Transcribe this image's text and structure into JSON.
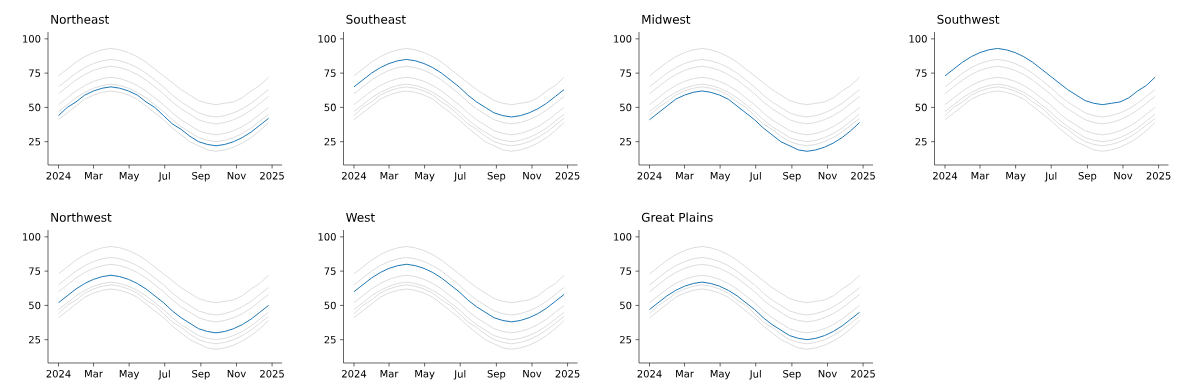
{
  "chart_data": [
    {
      "type": "line",
      "title": "Northeast",
      "x": [
        "2024-01-01",
        "2024-01-16",
        "2024-01-31",
        "2024-02-15",
        "2024-03-01",
        "2024-03-16",
        "2024-03-31",
        "2024-04-15",
        "2024-04-30",
        "2024-05-15",
        "2024-05-30",
        "2024-06-14",
        "2024-06-29",
        "2024-07-14",
        "2024-07-29",
        "2024-08-13",
        "2024-08-28",
        "2024-09-12",
        "2024-09-27",
        "2024-10-12",
        "2024-10-27",
        "2024-11-11",
        "2024-11-26",
        "2024-12-11",
        "2024-12-26"
      ],
      "xlim": [
        "2023-12-14",
        "2025-01-18"
      ],
      "ylim": [
        8,
        105
      ],
      "xticks": [
        {
          "value": "2024-01-01",
          "label": "2024"
        },
        {
          "value": "2024-03-01",
          "label": "Mar"
        },
        {
          "value": "2024-05-01",
          "label": "May"
        },
        {
          "value": "2024-07-01",
          "label": "Jul"
        },
        {
          "value": "2024-09-01",
          "label": "Sep"
        },
        {
          "value": "2024-11-01",
          "label": "Nov"
        },
        {
          "value": "2025-01-01",
          "label": "2025"
        }
      ],
      "yticks": [
        25,
        50,
        75,
        100
      ],
      "series": [
        {
          "color": "#dddddd",
          "values": [
            65,
            70,
            75,
            79,
            82,
            84,
            85,
            84,
            82,
            79,
            75,
            70,
            65,
            59,
            54,
            50,
            46,
            44,
            43,
            44,
            46,
            49,
            53,
            58,
            63
          ]
        },
        {
          "color": "#dddddd",
          "values": [
            41,
            46,
            51,
            56,
            59,
            61,
            62,
            61,
            59,
            56,
            51,
            46,
            41,
            35,
            30,
            25,
            22,
            19,
            18,
            19,
            21,
            24,
            28,
            33,
            39
          ]
        },
        {
          "color": "#dddddd",
          "values": [
            73,
            78,
            83,
            87,
            90,
            92,
            93,
            92,
            90,
            87,
            83,
            78,
            73,
            68,
            63,
            59,
            55,
            53,
            52,
            53,
            54,
            57,
            62,
            66,
            72
          ]
        },
        {
          "color": "#dddddd",
          "values": [
            52,
            57,
            62,
            66,
            69,
            71,
            72,
            71,
            69,
            66,
            62,
            57,
            52,
            46,
            41,
            37,
            33,
            31,
            30,
            31,
            33,
            36,
            40,
            45,
            50
          ]
        },
        {
          "color": "#dddddd",
          "values": [
            60,
            65,
            70,
            74,
            77,
            79,
            80,
            79,
            77,
            74,
            70,
            65,
            60,
            54,
            49,
            45,
            41,
            39,
            38,
            39,
            41,
            44,
            48,
            53,
            58
          ]
        },
        {
          "color": "#dddddd",
          "values": [
            47,
            52,
            57,
            61,
            64,
            66,
            67,
            66,
            64,
            61,
            57,
            52,
            47,
            41,
            36,
            32,
            28,
            26,
            25,
            26,
            28,
            31,
            35,
            40,
            45
          ]
        },
        {
          "color": "#1f77b4",
          "values": [
            44,
            50,
            54,
            59,
            62,
            64,
            65,
            64,
            62,
            59,
            54,
            50,
            44,
            38,
            34,
            29,
            25,
            23,
            22,
            23,
            25,
            28,
            32,
            37,
            42
          ]
        }
      ]
    },
    {
      "type": "line",
      "title": "Southeast",
      "x": [
        "2024-01-01",
        "2024-01-16",
        "2024-01-31",
        "2024-02-15",
        "2024-03-01",
        "2024-03-16",
        "2024-03-31",
        "2024-04-15",
        "2024-04-30",
        "2024-05-15",
        "2024-05-30",
        "2024-06-14",
        "2024-06-29",
        "2024-07-14",
        "2024-07-29",
        "2024-08-13",
        "2024-08-28",
        "2024-09-12",
        "2024-09-27",
        "2024-10-12",
        "2024-10-27",
        "2024-11-11",
        "2024-11-26",
        "2024-12-11",
        "2024-12-26"
      ],
      "xlim": [
        "2023-12-14",
        "2025-01-18"
      ],
      "ylim": [
        8,
        105
      ],
      "xticks": [
        {
          "value": "2024-01-01",
          "label": "2024"
        },
        {
          "value": "2024-03-01",
          "label": "Mar"
        },
        {
          "value": "2024-05-01",
          "label": "May"
        },
        {
          "value": "2024-07-01",
          "label": "Jul"
        },
        {
          "value": "2024-09-01",
          "label": "Sep"
        },
        {
          "value": "2024-11-01",
          "label": "Nov"
        },
        {
          "value": "2025-01-01",
          "label": "2025"
        }
      ],
      "yticks": [
        25,
        50,
        75,
        100
      ],
      "series": [
        {
          "color": "#dddddd",
          "values": [
            44,
            50,
            54,
            59,
            62,
            64,
            65,
            64,
            62,
            59,
            54,
            50,
            44,
            38,
            34,
            29,
            25,
            23,
            22,
            23,
            25,
            28,
            32,
            37,
            42
          ]
        },
        {
          "color": "#dddddd",
          "values": [
            41,
            46,
            51,
            56,
            59,
            61,
            62,
            61,
            59,
            56,
            51,
            46,
            41,
            35,
            30,
            25,
            22,
            19,
            18,
            19,
            21,
            24,
            28,
            33,
            39
          ]
        },
        {
          "color": "#dddddd",
          "values": [
            73,
            78,
            83,
            87,
            90,
            92,
            93,
            92,
            90,
            87,
            83,
            78,
            73,
            68,
            63,
            59,
            55,
            53,
            52,
            53,
            54,
            57,
            62,
            66,
            72
          ]
        },
        {
          "color": "#dddddd",
          "values": [
            52,
            57,
            62,
            66,
            69,
            71,
            72,
            71,
            69,
            66,
            62,
            57,
            52,
            46,
            41,
            37,
            33,
            31,
            30,
            31,
            33,
            36,
            40,
            45,
            50
          ]
        },
        {
          "color": "#dddddd",
          "values": [
            60,
            65,
            70,
            74,
            77,
            79,
            80,
            79,
            77,
            74,
            70,
            65,
            60,
            54,
            49,
            45,
            41,
            39,
            38,
            39,
            41,
            44,
            48,
            53,
            58
          ]
        },
        {
          "color": "#dddddd",
          "values": [
            47,
            52,
            57,
            61,
            64,
            66,
            67,
            66,
            64,
            61,
            57,
            52,
            47,
            41,
            36,
            32,
            28,
            26,
            25,
            26,
            28,
            31,
            35,
            40,
            45
          ]
        },
        {
          "color": "#1f77b4",
          "values": [
            65,
            70,
            75,
            79,
            82,
            84,
            85,
            84,
            82,
            79,
            75,
            70,
            65,
            59,
            54,
            50,
            46,
            44,
            43,
            44,
            46,
            49,
            53,
            58,
            63
          ]
        }
      ]
    },
    {
      "type": "line",
      "title": "Midwest",
      "x": [
        "2024-01-01",
        "2024-01-16",
        "2024-01-31",
        "2024-02-15",
        "2024-03-01",
        "2024-03-16",
        "2024-03-31",
        "2024-04-15",
        "2024-04-30",
        "2024-05-15",
        "2024-05-30",
        "2024-06-14",
        "2024-06-29",
        "2024-07-14",
        "2024-07-29",
        "2024-08-13",
        "2024-08-28",
        "2024-09-12",
        "2024-09-27",
        "2024-10-12",
        "2024-10-27",
        "2024-11-11",
        "2024-11-26",
        "2024-12-11",
        "2024-12-26"
      ],
      "xlim": [
        "2023-12-14",
        "2025-01-18"
      ],
      "ylim": [
        8,
        105
      ],
      "xticks": [
        {
          "value": "2024-01-01",
          "label": "2024"
        },
        {
          "value": "2024-03-01",
          "label": "Mar"
        },
        {
          "value": "2024-05-01",
          "label": "May"
        },
        {
          "value": "2024-07-01",
          "label": "Jul"
        },
        {
          "value": "2024-09-01",
          "label": "Sep"
        },
        {
          "value": "2024-11-01",
          "label": "Nov"
        },
        {
          "value": "2025-01-01",
          "label": "2025"
        }
      ],
      "yticks": [
        25,
        50,
        75,
        100
      ],
      "series": [
        {
          "color": "#dddddd",
          "values": [
            44,
            50,
            54,
            59,
            62,
            64,
            65,
            64,
            62,
            59,
            54,
            50,
            44,
            38,
            34,
            29,
            25,
            23,
            22,
            23,
            25,
            28,
            32,
            37,
            42
          ]
        },
        {
          "color": "#dddddd",
          "values": [
            65,
            70,
            75,
            79,
            82,
            84,
            85,
            84,
            82,
            79,
            75,
            70,
            65,
            59,
            54,
            50,
            46,
            44,
            43,
            44,
            46,
            49,
            53,
            58,
            63
          ]
        },
        {
          "color": "#dddddd",
          "values": [
            73,
            78,
            83,
            87,
            90,
            92,
            93,
            92,
            90,
            87,
            83,
            78,
            73,
            68,
            63,
            59,
            55,
            53,
            52,
            53,
            54,
            57,
            62,
            66,
            72
          ]
        },
        {
          "color": "#dddddd",
          "values": [
            52,
            57,
            62,
            66,
            69,
            71,
            72,
            71,
            69,
            66,
            62,
            57,
            52,
            46,
            41,
            37,
            33,
            31,
            30,
            31,
            33,
            36,
            40,
            45,
            50
          ]
        },
        {
          "color": "#dddddd",
          "values": [
            60,
            65,
            70,
            74,
            77,
            79,
            80,
            79,
            77,
            74,
            70,
            65,
            60,
            54,
            49,
            45,
            41,
            39,
            38,
            39,
            41,
            44,
            48,
            53,
            58
          ]
        },
        {
          "color": "#dddddd",
          "values": [
            47,
            52,
            57,
            61,
            64,
            66,
            67,
            66,
            64,
            61,
            57,
            52,
            47,
            41,
            36,
            32,
            28,
            26,
            25,
            26,
            28,
            31,
            35,
            40,
            45
          ]
        },
        {
          "color": "#1f77b4",
          "values": [
            41,
            46,
            51,
            56,
            59,
            61,
            62,
            61,
            59,
            56,
            51,
            46,
            41,
            35,
            30,
            25,
            22,
            19,
            18,
            19,
            21,
            24,
            28,
            33,
            39
          ]
        }
      ]
    },
    {
      "type": "line",
      "title": "Southwest",
      "x": [
        "2024-01-01",
        "2024-01-16",
        "2024-01-31",
        "2024-02-15",
        "2024-03-01",
        "2024-03-16",
        "2024-03-31",
        "2024-04-15",
        "2024-04-30",
        "2024-05-15",
        "2024-05-30",
        "2024-06-14",
        "2024-06-29",
        "2024-07-14",
        "2024-07-29",
        "2024-08-13",
        "2024-08-28",
        "2024-09-12",
        "2024-09-27",
        "2024-10-12",
        "2024-10-27",
        "2024-11-11",
        "2024-11-26",
        "2024-12-11",
        "2024-12-26"
      ],
      "xlim": [
        "2023-12-14",
        "2025-01-18"
      ],
      "ylim": [
        8,
        105
      ],
      "xticks": [
        {
          "value": "2024-01-01",
          "label": "2024"
        },
        {
          "value": "2024-03-01",
          "label": "Mar"
        },
        {
          "value": "2024-05-01",
          "label": "May"
        },
        {
          "value": "2024-07-01",
          "label": "Jul"
        },
        {
          "value": "2024-09-01",
          "label": "Sep"
        },
        {
          "value": "2024-11-01",
          "label": "Nov"
        },
        {
          "value": "2025-01-01",
          "label": "2025"
        }
      ],
      "yticks": [
        25,
        50,
        75,
        100
      ],
      "series": [
        {
          "color": "#dddddd",
          "values": [
            44,
            50,
            54,
            59,
            62,
            64,
            65,
            64,
            62,
            59,
            54,
            50,
            44,
            38,
            34,
            29,
            25,
            23,
            22,
            23,
            25,
            28,
            32,
            37,
            42
          ]
        },
        {
          "color": "#dddddd",
          "values": [
            65,
            70,
            75,
            79,
            82,
            84,
            85,
            84,
            82,
            79,
            75,
            70,
            65,
            59,
            54,
            50,
            46,
            44,
            43,
            44,
            46,
            49,
            53,
            58,
            63
          ]
        },
        {
          "color": "#dddddd",
          "values": [
            41,
            46,
            51,
            56,
            59,
            61,
            62,
            61,
            59,
            56,
            51,
            46,
            41,
            35,
            30,
            25,
            22,
            19,
            18,
            19,
            21,
            24,
            28,
            33,
            39
          ]
        },
        {
          "color": "#dddddd",
          "values": [
            52,
            57,
            62,
            66,
            69,
            71,
            72,
            71,
            69,
            66,
            62,
            57,
            52,
            46,
            41,
            37,
            33,
            31,
            30,
            31,
            33,
            36,
            40,
            45,
            50
          ]
        },
        {
          "color": "#dddddd",
          "values": [
            60,
            65,
            70,
            74,
            77,
            79,
            80,
            79,
            77,
            74,
            70,
            65,
            60,
            54,
            49,
            45,
            41,
            39,
            38,
            39,
            41,
            44,
            48,
            53,
            58
          ]
        },
        {
          "color": "#dddddd",
          "values": [
            47,
            52,
            57,
            61,
            64,
            66,
            67,
            66,
            64,
            61,
            57,
            52,
            47,
            41,
            36,
            32,
            28,
            26,
            25,
            26,
            28,
            31,
            35,
            40,
            45
          ]
        },
        {
          "color": "#1f77b4",
          "values": [
            73,
            78,
            83,
            87,
            90,
            92,
            93,
            92,
            90,
            87,
            83,
            78,
            73,
            68,
            63,
            59,
            55,
            53,
            52,
            53,
            54,
            57,
            62,
            66,
            72
          ]
        }
      ]
    },
    {
      "type": "line",
      "title": "Northwest",
      "x": [
        "2024-01-01",
        "2024-01-16",
        "2024-01-31",
        "2024-02-15",
        "2024-03-01",
        "2024-03-16",
        "2024-03-31",
        "2024-04-15",
        "2024-04-30",
        "2024-05-15",
        "2024-05-30",
        "2024-06-14",
        "2024-06-29",
        "2024-07-14",
        "2024-07-29",
        "2024-08-13",
        "2024-08-28",
        "2024-09-12",
        "2024-09-27",
        "2024-10-12",
        "2024-10-27",
        "2024-11-11",
        "2024-11-26",
        "2024-12-11",
        "2024-12-26"
      ],
      "xlim": [
        "2023-12-14",
        "2025-01-18"
      ],
      "ylim": [
        8,
        105
      ],
      "xticks": [
        {
          "value": "2024-01-01",
          "label": "2024"
        },
        {
          "value": "2024-03-01",
          "label": "Mar"
        },
        {
          "value": "2024-05-01",
          "label": "May"
        },
        {
          "value": "2024-07-01",
          "label": "Jul"
        },
        {
          "value": "2024-09-01",
          "label": "Sep"
        },
        {
          "value": "2024-11-01",
          "label": "Nov"
        },
        {
          "value": "2025-01-01",
          "label": "2025"
        }
      ],
      "yticks": [
        25,
        50,
        75,
        100
      ],
      "series": [
        {
          "color": "#dddddd",
          "values": [
            44,
            50,
            54,
            59,
            62,
            64,
            65,
            64,
            62,
            59,
            54,
            50,
            44,
            38,
            34,
            29,
            25,
            23,
            22,
            23,
            25,
            28,
            32,
            37,
            42
          ]
        },
        {
          "color": "#dddddd",
          "values": [
            65,
            70,
            75,
            79,
            82,
            84,
            85,
            84,
            82,
            79,
            75,
            70,
            65,
            59,
            54,
            50,
            46,
            44,
            43,
            44,
            46,
            49,
            53,
            58,
            63
          ]
        },
        {
          "color": "#dddddd",
          "values": [
            41,
            46,
            51,
            56,
            59,
            61,
            62,
            61,
            59,
            56,
            51,
            46,
            41,
            35,
            30,
            25,
            22,
            19,
            18,
            19,
            21,
            24,
            28,
            33,
            39
          ]
        },
        {
          "color": "#dddddd",
          "values": [
            73,
            78,
            83,
            87,
            90,
            92,
            93,
            92,
            90,
            87,
            83,
            78,
            73,
            68,
            63,
            59,
            55,
            53,
            52,
            53,
            54,
            57,
            62,
            66,
            72
          ]
        },
        {
          "color": "#dddddd",
          "values": [
            60,
            65,
            70,
            74,
            77,
            79,
            80,
            79,
            77,
            74,
            70,
            65,
            60,
            54,
            49,
            45,
            41,
            39,
            38,
            39,
            41,
            44,
            48,
            53,
            58
          ]
        },
        {
          "color": "#dddddd",
          "values": [
            47,
            52,
            57,
            61,
            64,
            66,
            67,
            66,
            64,
            61,
            57,
            52,
            47,
            41,
            36,
            32,
            28,
            26,
            25,
            26,
            28,
            31,
            35,
            40,
            45
          ]
        },
        {
          "color": "#1f77b4",
          "values": [
            52,
            57,
            62,
            66,
            69,
            71,
            72,
            71,
            69,
            66,
            62,
            57,
            52,
            46,
            41,
            37,
            33,
            31,
            30,
            31,
            33,
            36,
            40,
            45,
            50
          ]
        }
      ]
    },
    {
      "type": "line",
      "title": "West",
      "x": [
        "2024-01-01",
        "2024-01-16",
        "2024-01-31",
        "2024-02-15",
        "2024-03-01",
        "2024-03-16",
        "2024-03-31",
        "2024-04-15",
        "2024-04-30",
        "2024-05-15",
        "2024-05-30",
        "2024-06-14",
        "2024-06-29",
        "2024-07-14",
        "2024-07-29",
        "2024-08-13",
        "2024-08-28",
        "2024-09-12",
        "2024-09-27",
        "2024-10-12",
        "2024-10-27",
        "2024-11-11",
        "2024-11-26",
        "2024-12-11",
        "2024-12-26"
      ],
      "xlim": [
        "2023-12-14",
        "2025-01-18"
      ],
      "ylim": [
        8,
        105
      ],
      "xticks": [
        {
          "value": "2024-01-01",
          "label": "2024"
        },
        {
          "value": "2024-03-01",
          "label": "Mar"
        },
        {
          "value": "2024-05-01",
          "label": "May"
        },
        {
          "value": "2024-07-01",
          "label": "Jul"
        },
        {
          "value": "2024-09-01",
          "label": "Sep"
        },
        {
          "value": "2024-11-01",
          "label": "Nov"
        },
        {
          "value": "2025-01-01",
          "label": "2025"
        }
      ],
      "yticks": [
        25,
        50,
        75,
        100
      ],
      "series": [
        {
          "color": "#dddddd",
          "values": [
            44,
            50,
            54,
            59,
            62,
            64,
            65,
            64,
            62,
            59,
            54,
            50,
            44,
            38,
            34,
            29,
            25,
            23,
            22,
            23,
            25,
            28,
            32,
            37,
            42
          ]
        },
        {
          "color": "#dddddd",
          "values": [
            65,
            70,
            75,
            79,
            82,
            84,
            85,
            84,
            82,
            79,
            75,
            70,
            65,
            59,
            54,
            50,
            46,
            44,
            43,
            44,
            46,
            49,
            53,
            58,
            63
          ]
        },
        {
          "color": "#dddddd",
          "values": [
            41,
            46,
            51,
            56,
            59,
            61,
            62,
            61,
            59,
            56,
            51,
            46,
            41,
            35,
            30,
            25,
            22,
            19,
            18,
            19,
            21,
            24,
            28,
            33,
            39
          ]
        },
        {
          "color": "#dddddd",
          "values": [
            73,
            78,
            83,
            87,
            90,
            92,
            93,
            92,
            90,
            87,
            83,
            78,
            73,
            68,
            63,
            59,
            55,
            53,
            52,
            53,
            54,
            57,
            62,
            66,
            72
          ]
        },
        {
          "color": "#dddddd",
          "values": [
            52,
            57,
            62,
            66,
            69,
            71,
            72,
            71,
            69,
            66,
            62,
            57,
            52,
            46,
            41,
            37,
            33,
            31,
            30,
            31,
            33,
            36,
            40,
            45,
            50
          ]
        },
        {
          "color": "#dddddd",
          "values": [
            47,
            52,
            57,
            61,
            64,
            66,
            67,
            66,
            64,
            61,
            57,
            52,
            47,
            41,
            36,
            32,
            28,
            26,
            25,
            26,
            28,
            31,
            35,
            40,
            45
          ]
        },
        {
          "color": "#1f77b4",
          "values": [
            60,
            65,
            70,
            74,
            77,
            79,
            80,
            79,
            77,
            74,
            70,
            65,
            60,
            54,
            49,
            45,
            41,
            39,
            38,
            39,
            41,
            44,
            48,
            53,
            58
          ]
        }
      ]
    },
    {
      "type": "line",
      "title": "Great Plains",
      "x": [
        "2024-01-01",
        "2024-01-16",
        "2024-01-31",
        "2024-02-15",
        "2024-03-01",
        "2024-03-16",
        "2024-03-31",
        "2024-04-15",
        "2024-04-30",
        "2024-05-15",
        "2024-05-30",
        "2024-06-14",
        "2024-06-29",
        "2024-07-14",
        "2024-07-29",
        "2024-08-13",
        "2024-08-28",
        "2024-09-12",
        "2024-09-27",
        "2024-10-12",
        "2024-10-27",
        "2024-11-11",
        "2024-11-26",
        "2024-12-11",
        "2024-12-26"
      ],
      "xlim": [
        "2023-12-14",
        "2025-01-18"
      ],
      "ylim": [
        8,
        105
      ],
      "xticks": [
        {
          "value": "2024-01-01",
          "label": "2024"
        },
        {
          "value": "2024-03-01",
          "label": "Mar"
        },
        {
          "value": "2024-05-01",
          "label": "May"
        },
        {
          "value": "2024-07-01",
          "label": "Jul"
        },
        {
          "value": "2024-09-01",
          "label": "Sep"
        },
        {
          "value": "2024-11-01",
          "label": "Nov"
        },
        {
          "value": "2025-01-01",
          "label": "2025"
        }
      ],
      "yticks": [
        25,
        50,
        75,
        100
      ],
      "series": [
        {
          "color": "#dddddd",
          "values": [
            44,
            50,
            54,
            59,
            62,
            64,
            65,
            64,
            62,
            59,
            54,
            50,
            44,
            38,
            34,
            29,
            25,
            23,
            22,
            23,
            25,
            28,
            32,
            37,
            42
          ]
        },
        {
          "color": "#dddddd",
          "values": [
            65,
            70,
            75,
            79,
            82,
            84,
            85,
            84,
            82,
            79,
            75,
            70,
            65,
            59,
            54,
            50,
            46,
            44,
            43,
            44,
            46,
            49,
            53,
            58,
            63
          ]
        },
        {
          "color": "#dddddd",
          "values": [
            41,
            46,
            51,
            56,
            59,
            61,
            62,
            61,
            59,
            56,
            51,
            46,
            41,
            35,
            30,
            25,
            22,
            19,
            18,
            19,
            21,
            24,
            28,
            33,
            39
          ]
        },
        {
          "color": "#dddddd",
          "values": [
            73,
            78,
            83,
            87,
            90,
            92,
            93,
            92,
            90,
            87,
            83,
            78,
            73,
            68,
            63,
            59,
            55,
            53,
            52,
            53,
            54,
            57,
            62,
            66,
            72
          ]
        },
        {
          "color": "#dddddd",
          "values": [
            52,
            57,
            62,
            66,
            69,
            71,
            72,
            71,
            69,
            66,
            62,
            57,
            52,
            46,
            41,
            37,
            33,
            31,
            30,
            31,
            33,
            36,
            40,
            45,
            50
          ]
        },
        {
          "color": "#dddddd",
          "values": [
            60,
            65,
            70,
            74,
            77,
            79,
            80,
            79,
            77,
            74,
            70,
            65,
            60,
            54,
            49,
            45,
            41,
            39,
            38,
            39,
            41,
            44,
            48,
            53,
            58
          ]
        },
        {
          "color": "#1f77b4",
          "values": [
            47,
            52,
            57,
            61,
            64,
            66,
            67,
            66,
            64,
            61,
            57,
            52,
            47,
            41,
            36,
            32,
            28,
            26,
            25,
            26,
            28,
            31,
            35,
            40,
            45
          ]
        }
      ]
    }
  ]
}
